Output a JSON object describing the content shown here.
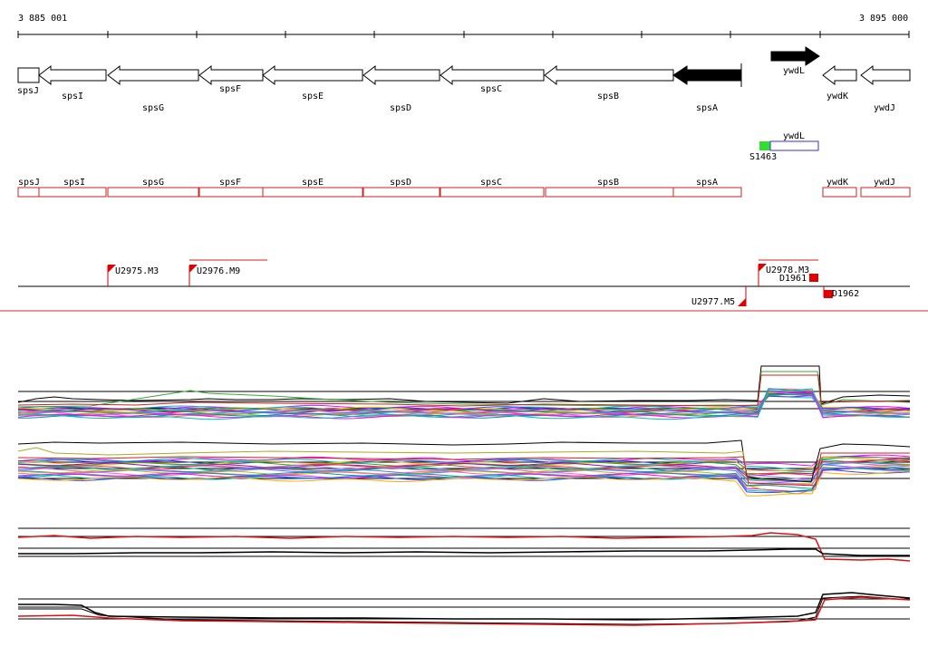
{
  "ruler": {
    "start_label": "3 885 001",
    "end_label": "3 895 000"
  },
  "genes": [
    {
      "name": "spsJ",
      "strand": "-",
      "highlight": false
    },
    {
      "name": "spsI",
      "strand": "-",
      "highlight": false
    },
    {
      "name": "spsG",
      "strand": "-",
      "highlight": false
    },
    {
      "name": "spsF",
      "strand": "-",
      "highlight": false
    },
    {
      "name": "spsE",
      "strand": "-",
      "highlight": false
    },
    {
      "name": "spsD",
      "strand": "-",
      "highlight": false
    },
    {
      "name": "spsC",
      "strand": "-",
      "highlight": false
    },
    {
      "name": "spsB",
      "strand": "-",
      "highlight": false
    },
    {
      "name": "spsA",
      "strand": "-",
      "highlight": true
    },
    {
      "name": "ywdL",
      "strand": "+",
      "highlight": true
    },
    {
      "name": "ywdK",
      "strand": "-",
      "highlight": false
    },
    {
      "name": "ywdJ",
      "strand": "-",
      "highlight": false
    }
  ],
  "segment_track": {
    "segment_label": "S1463",
    "gene_label": "ywdL",
    "start_color": "#33dd33",
    "box_color": "#3333cc"
  },
  "annotation_boxes": [
    "spsJ",
    "spsI",
    "spsG",
    "spsF",
    "spsE",
    "spsD",
    "spsC",
    "spsB",
    "spsA",
    "ywdK",
    "ywdJ"
  ],
  "annotation_color": "#d22222",
  "transcription_units": [
    {
      "label": "U2975.M3",
      "strand": "+"
    },
    {
      "label": "U2976.M9",
      "strand": "+"
    },
    {
      "label": "U2978.M3",
      "strand": "+"
    },
    {
      "label": "U2977.M5",
      "strand": "-"
    }
  ],
  "terminators": [
    {
      "label": "D1961"
    },
    {
      "label": "D1962"
    }
  ],
  "separator_color": "#cc3333"
}
